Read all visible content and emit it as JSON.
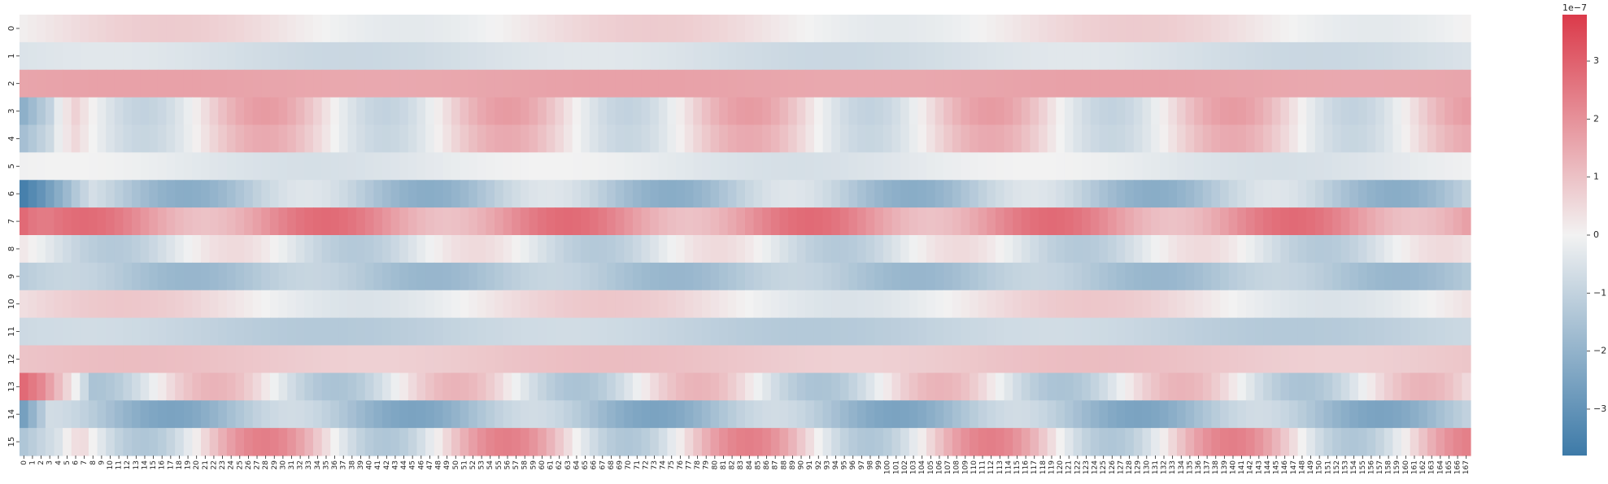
{
  "chart_data": {
    "type": "heatmap",
    "title": "",
    "xlabel": "",
    "ylabel": "",
    "rows": 16,
    "cols": 168,
    "row_labels": [
      "0",
      "1",
      "2",
      "3",
      "4",
      "5",
      "6",
      "7",
      "8",
      "9",
      "10",
      "11",
      "12",
      "13",
      "14",
      "15"
    ],
    "col_label_step": 1,
    "value_scale": "1e-7",
    "clim": [
      -3.8,
      3.8
    ],
    "colorbar": {
      "exponent_label": "1e−7",
      "ticks": [
        3,
        2,
        1,
        0,
        -1,
        -2,
        -3
      ],
      "tick_labels": [
        "3",
        "2",
        "1",
        "0",
        "−1",
        "−2",
        "−3"
      ]
    },
    "colormap": {
      "low": "#3d7aa8",
      "mid": "#f2f2f2",
      "high": "#db3a4a"
    },
    "row_profiles": [
      {
        "row": 0,
        "base": 0.25,
        "amp": 0.55,
        "period": 56,
        "phase": -0.3,
        "edges": []
      },
      {
        "row": 1,
        "base": -0.6,
        "amp": 0.25,
        "period": 56,
        "phase": 0.5,
        "edges": []
      },
      {
        "row": 2,
        "base": 1.6,
        "amp": 0.08,
        "period": 56,
        "phase": 0.0,
        "edges": []
      },
      {
        "row": 3,
        "base": 0.4,
        "amp": 1.4,
        "period": 28,
        "phase": 1.6,
        "edges": [
          {
            "col": 0,
            "value": -2.1
          },
          {
            "col": 3,
            "value": -1.0
          }
        ]
      },
      {
        "row": 4,
        "base": 0.3,
        "amp": 1.2,
        "period": 28,
        "phase": 1.6,
        "edges": [
          {
            "col": 0,
            "value": -1.6
          },
          {
            "col": 3,
            "value": -0.8
          }
        ]
      },
      {
        "row": 5,
        "base": -0.3,
        "amp": 0.3,
        "period": 56,
        "phase": 1.0,
        "edges": []
      },
      {
        "row": 6,
        "base": -1.3,
        "amp": 0.9,
        "period": 28,
        "phase": 0.5,
        "edges": [
          {
            "col": 0,
            "value": -3.6
          },
          {
            "col": 2,
            "value": -3.0
          },
          {
            "col": 5,
            "value": -1.8
          }
        ]
      },
      {
        "row": 7,
        "base": 1.9,
        "amp": 0.9,
        "period": 28,
        "phase": 0.0,
        "edges": [
          {
            "col": 0,
            "value": 2.8
          }
        ]
      },
      {
        "row": 8,
        "base": -0.4,
        "amp": 0.9,
        "period": 28,
        "phase": 2.4,
        "edges": []
      },
      {
        "row": 9,
        "base": -1.4,
        "amp": 0.5,
        "period": 28,
        "phase": 0.4,
        "edges": []
      },
      {
        "row": 10,
        "base": 0.2,
        "amp": 0.7,
        "period": 56,
        "phase": 0.3,
        "edges": []
      },
      {
        "row": 11,
        "base": -1.0,
        "amp": 0.3,
        "period": 56,
        "phase": 0.8,
        "edges": []
      },
      {
        "row": 12,
        "base": 0.9,
        "amp": 0.2,
        "period": 56,
        "phase": 0.2,
        "edges": []
      },
      {
        "row": 13,
        "base": -0.1,
        "amp": 1.4,
        "period": 28,
        "phase": 2.9,
        "edges": [
          {
            "col": 0,
            "value": 2.8
          },
          {
            "col": 2,
            "value": 2.2
          },
          {
            "col": 5,
            "value": 0.6
          }
        ]
      },
      {
        "row": 14,
        "base": -1.6,
        "amp": 0.9,
        "period": 28,
        "phase": 0.9,
        "edges": [
          {
            "col": 0,
            "value": -2.6
          }
        ]
      },
      {
        "row": 15,
        "base": 0.5,
        "amp": 1.9,
        "period": 28,
        "phase": 1.6,
        "edges": [
          {
            "col": 0,
            "value": -1.4
          },
          {
            "col": 4,
            "value": -0.5
          }
        ]
      }
    ]
  }
}
